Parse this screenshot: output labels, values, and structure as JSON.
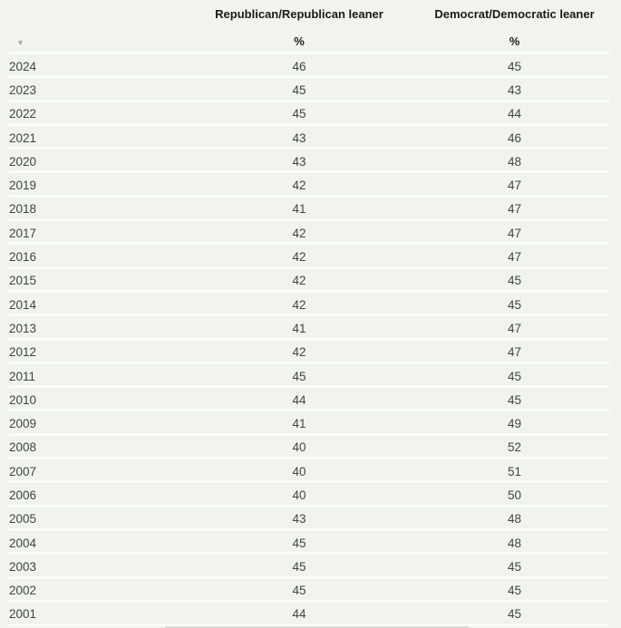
{
  "table": {
    "sort_icon": "▼",
    "columns": [
      {
        "label": "",
        "unit": ""
      },
      {
        "label": "Republican/Republican leaner",
        "unit": "%"
      },
      {
        "label": "Democrat/Democratic leaner",
        "unit": "%"
      }
    ],
    "rows": [
      {
        "year": "2024",
        "rep": "46",
        "dem": "45"
      },
      {
        "year": "2023",
        "rep": "45",
        "dem": "43"
      },
      {
        "year": "2022",
        "rep": "45",
        "dem": "44"
      },
      {
        "year": "2021",
        "rep": "43",
        "dem": "46"
      },
      {
        "year": "2020",
        "rep": "43",
        "dem": "48"
      },
      {
        "year": "2019",
        "rep": "42",
        "dem": "47"
      },
      {
        "year": "2018",
        "rep": "41",
        "dem": "47"
      },
      {
        "year": "2017",
        "rep": "42",
        "dem": "47"
      },
      {
        "year": "2016",
        "rep": "42",
        "dem": "47"
      },
      {
        "year": "2015",
        "rep": "42",
        "dem": "45"
      },
      {
        "year": "2014",
        "rep": "42",
        "dem": "45"
      },
      {
        "year": "2013",
        "rep": "41",
        "dem": "47"
      },
      {
        "year": "2012",
        "rep": "42",
        "dem": "47"
      },
      {
        "year": "2011",
        "rep": "45",
        "dem": "45"
      },
      {
        "year": "2010",
        "rep": "44",
        "dem": "45"
      },
      {
        "year": "2009",
        "rep": "41",
        "dem": "49"
      },
      {
        "year": "2008",
        "rep": "40",
        "dem": "52"
      },
      {
        "year": "2007",
        "rep": "40",
        "dem": "51"
      },
      {
        "year": "2006",
        "rep": "40",
        "dem": "50"
      },
      {
        "year": "2005",
        "rep": "43",
        "dem": "48"
      },
      {
        "year": "2004",
        "rep": "45",
        "dem": "48"
      },
      {
        "year": "2003",
        "rep": "45",
        "dem": "45"
      },
      {
        "year": "2002",
        "rep": "45",
        "dem": "45"
      },
      {
        "year": "2001",
        "rep": "44",
        "dem": "45"
      }
    ]
  },
  "colors": {
    "background": "#f0f4ed",
    "separator": "#fbfdf9",
    "header_text": "#1a1a1a",
    "data_text": "#414345",
    "sort_icon": "#a9aea4",
    "scrollbar": "#d7d9d4"
  },
  "chart_data": {
    "type": "table",
    "title": "",
    "unit": "%",
    "categories": [
      "2024",
      "2023",
      "2022",
      "2021",
      "2020",
      "2019",
      "2018",
      "2017",
      "2016",
      "2015",
      "2014",
      "2013",
      "2012",
      "2011",
      "2010",
      "2009",
      "2008",
      "2007",
      "2006",
      "2005",
      "2004",
      "2003",
      "2002",
      "2001"
    ],
    "series": [
      {
        "name": "Republican/Republican leaner",
        "values": [
          46,
          45,
          45,
          43,
          43,
          42,
          41,
          42,
          42,
          42,
          42,
          41,
          42,
          45,
          44,
          41,
          40,
          40,
          40,
          43,
          45,
          45,
          45,
          44
        ]
      },
      {
        "name": "Democrat/Democratic leaner",
        "values": [
          45,
          43,
          44,
          46,
          48,
          47,
          47,
          47,
          47,
          45,
          45,
          47,
          47,
          45,
          45,
          49,
          52,
          51,
          50,
          48,
          48,
          45,
          45,
          45
        ]
      }
    ]
  }
}
